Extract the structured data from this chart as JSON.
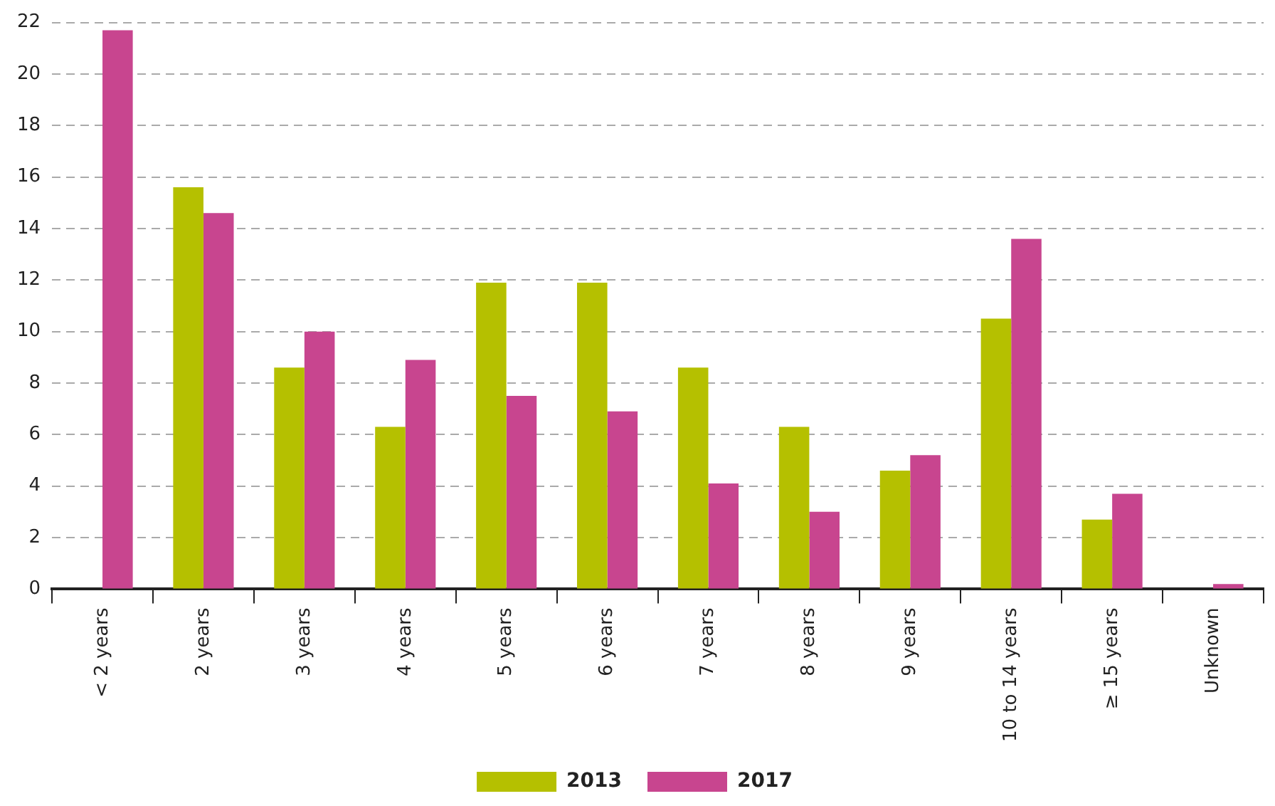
{
  "chart_data": {
    "type": "bar",
    "categories": [
      "< 2 years",
      "2 years",
      "3 years",
      "4 years",
      "5 years",
      "6 years",
      "7 years",
      "8 years",
      "9 years",
      "10 to 14 years",
      "≥ 15 years",
      "Unknown"
    ],
    "series": [
      {
        "name": "2013",
        "color": "#b5c000",
        "values": [
          null,
          15.6,
          8.6,
          6.3,
          11.9,
          11.9,
          8.6,
          6.3,
          4.6,
          10.5,
          2.7,
          null
        ]
      },
      {
        "name": "2017",
        "color": "#c8458f",
        "values": [
          21.7,
          14.6,
          10.0,
          8.9,
          7.5,
          6.9,
          4.1,
          3.0,
          5.2,
          13.6,
          3.7,
          0.2
        ]
      }
    ],
    "ylim": [
      0,
      22
    ],
    "yticks": [
      0,
      2,
      4,
      6,
      8,
      10,
      12,
      14,
      16,
      18,
      20,
      22
    ],
    "grid": "y",
    "legend": "bottom"
  }
}
